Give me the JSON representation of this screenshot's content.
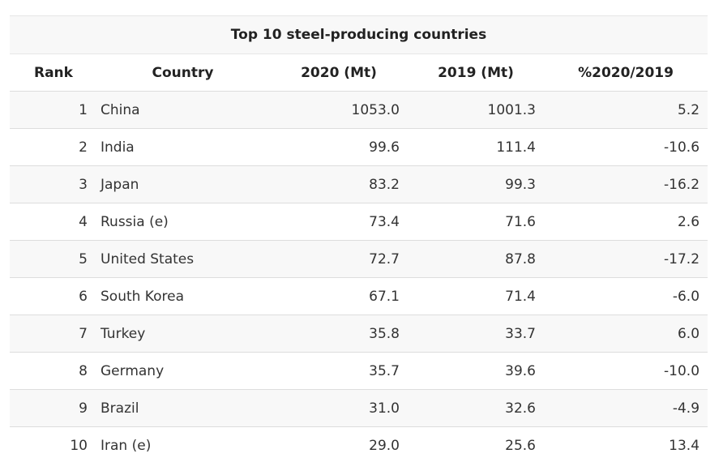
{
  "table": {
    "title": "Top 10 steel-producing countries",
    "headers": {
      "rank": "Rank",
      "country": "Country",
      "y2020": "2020 (Mt)",
      "y2019": "2019 (Mt)",
      "pct": "%2020/2019"
    },
    "rows": [
      {
        "rank": "1",
        "country": "China",
        "y2020": "1053.0",
        "y2019": "1001.3",
        "pct": "5.2"
      },
      {
        "rank": "2",
        "country": "India",
        "y2020": "99.6",
        "y2019": "111.4",
        "pct": "-10.6"
      },
      {
        "rank": "3",
        "country": "Japan",
        "y2020": "83.2",
        "y2019": "99.3",
        "pct": "-16.2"
      },
      {
        "rank": "4",
        "country": "Russia (e)",
        "y2020": "73.4",
        "y2019": "71.6",
        "pct": "2.6"
      },
      {
        "rank": "5",
        "country": "United States",
        "y2020": "72.7",
        "y2019": "87.8",
        "pct": "-17.2"
      },
      {
        "rank": "6",
        "country": "South Korea",
        "y2020": "67.1",
        "y2019": "71.4",
        "pct": "-6.0"
      },
      {
        "rank": "7",
        "country": "Turkey",
        "y2020": "35.8",
        "y2019": "33.7",
        "pct": "6.0"
      },
      {
        "rank": "8",
        "country": "Germany",
        "y2020": "35.7",
        "y2019": "39.6",
        "pct": "-10.0"
      },
      {
        "rank": "9",
        "country": "Brazil",
        "y2020": "31.0",
        "y2019": "32.6",
        "pct": "-4.9"
      },
      {
        "rank": "10",
        "country": "Iran (e)",
        "y2020": "29.0",
        "y2019": "25.6",
        "pct": "13.4"
      }
    ]
  }
}
